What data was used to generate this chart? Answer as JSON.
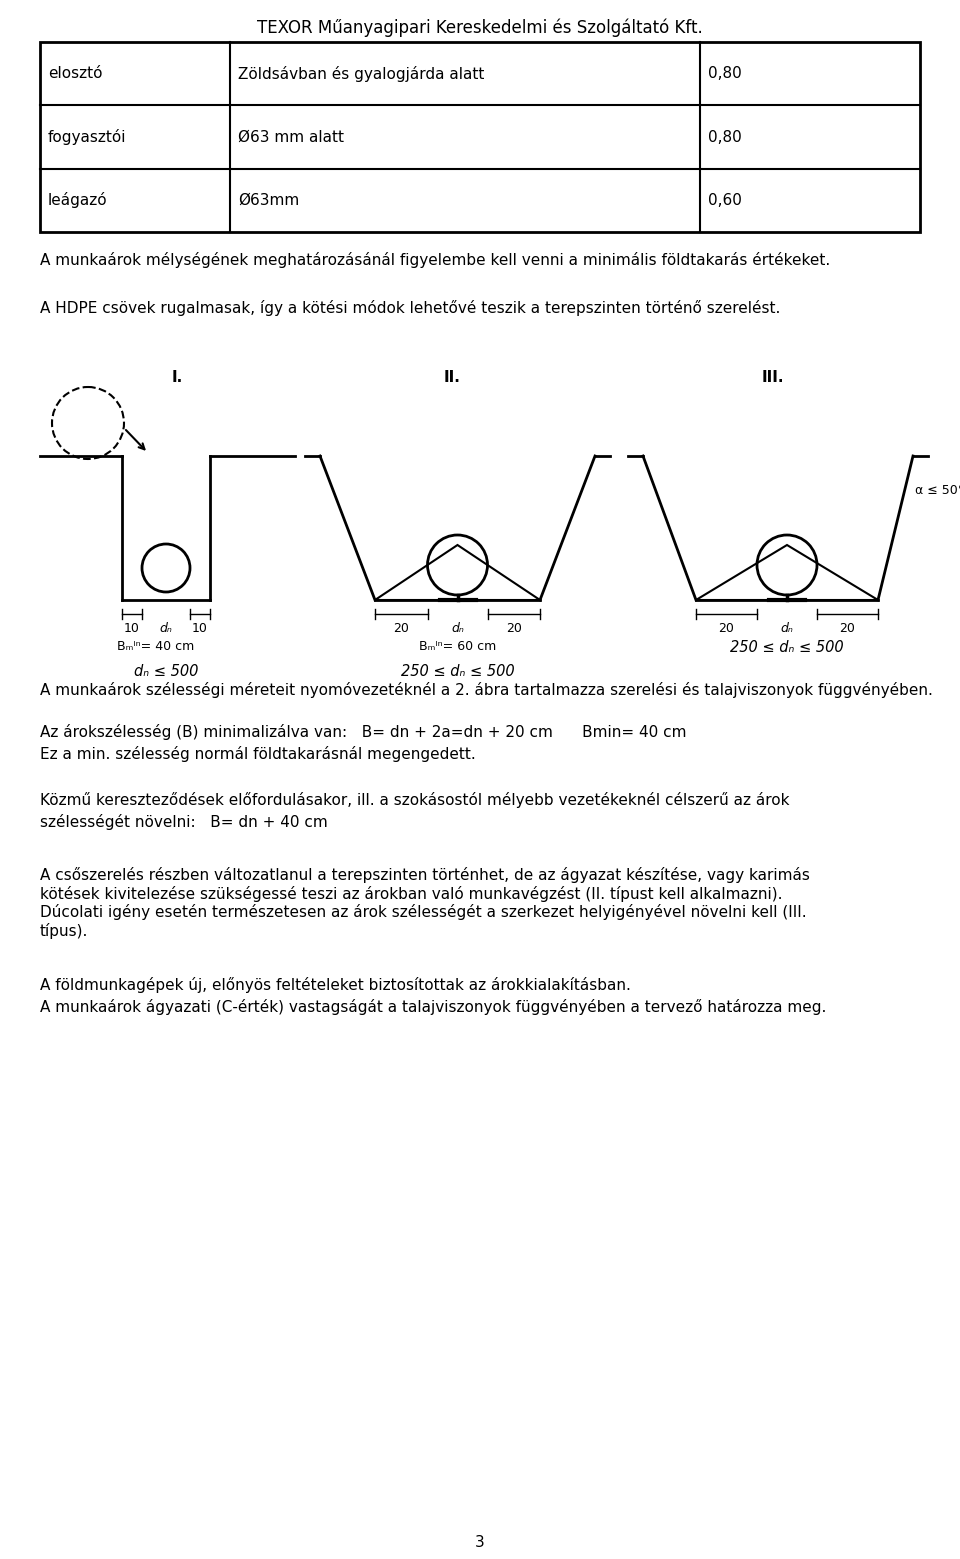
{
  "title": "TEXOR Műanyagipari Kereskedelmi és Szolgáltató Kft.",
  "table_rows": [
    [
      "elosztó",
      "Zöldsávban és gyalogjárda alatt",
      "0,80"
    ],
    [
      "fogyasztói",
      "Ø63 mm alatt",
      "0,80"
    ],
    [
      "leágazó",
      "Ø63mm",
      "0,60"
    ]
  ],
  "para1": "A munkaárok mélységének meghatározásánál figyelembe kell venni a minimális földtakarás értékeket.",
  "para2": "A HDPE csövek rugalmasak, így a kötési módok lehetővé teszik a terepszinten történő szerelést.",
  "para3": "A munkaárok szélességi méreteit nyomóvezetéknél a 2. ábra tartalmazza szerelési és talajviszonyok függvényében.",
  "para4a": "Az árokszélesség (B) minimalizálva van:   B= dn + 2a=dn + 20 cm      Bmin= 40 cm",
  "para4b": "Ez a min. szélesség normál földtakarásnál megengedett.",
  "para5a": "Közmű kereszteződések előfordulásakor, ill. a szokásostól mélyebb vezetékeknél célszerű az árok",
  "para5b": "szélességét növelni:   B= dn + 40 cm",
  "para6": "A csőszerelés részben változatlanul a terepszinten történhet, de az ágyazat készítése, vagy karimás\nkötések kivitelezése szükségessé teszi az árokban való munkavégzést (II. típust kell alkalmazni).\nDúcolati igény esetén természetesen az árok szélességét a szerkezet helyigényével növelni kell (III.\ntípus).",
  "para7a": "A földmunkagépek új, előnyös feltételeket biztosítottak az árokkialakításban.",
  "para7b": "A munkaárok ágyazati (C-érték) vastagságát a talajviszonyok függvényében a tervező határozza meg.",
  "page_num": "3",
  "bg_color": "#ffffff",
  "text_color": "#000000"
}
